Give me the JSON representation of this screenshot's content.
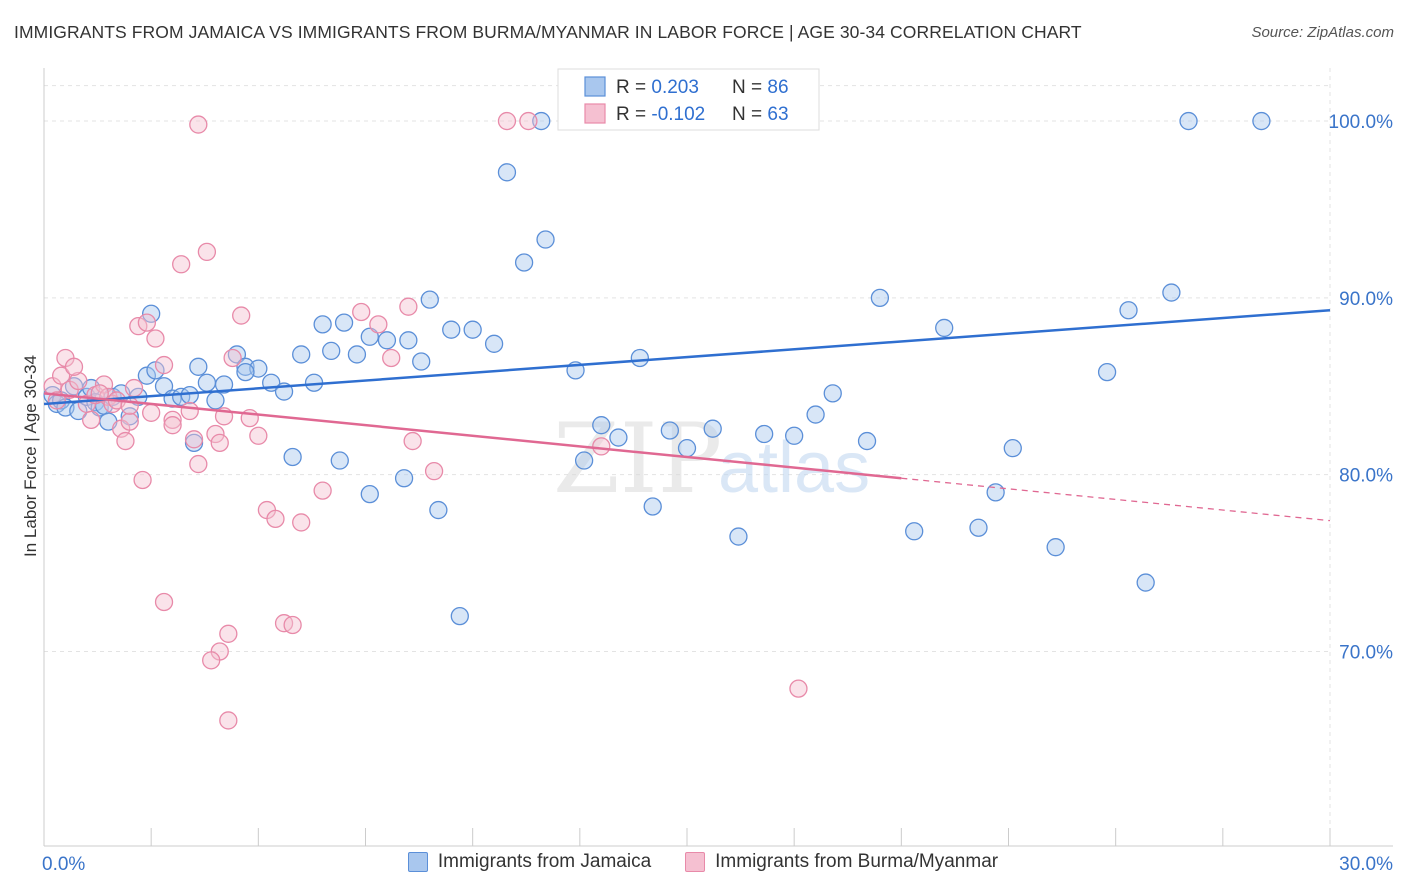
{
  "title": "IMMIGRANTS FROM JAMAICA VS IMMIGRANTS FROM BURMA/MYANMAR IN LABOR FORCE | AGE 30-34 CORRELATION CHART",
  "source": "Source: ZipAtlas.com",
  "watermark": {
    "zip": "ZIP",
    "atlas": "atlas"
  },
  "chart_data": {
    "type": "scatter",
    "ylabel": "In Labor Force | Age 30-34",
    "xlabel": "",
    "xlim": [
      0,
      30
    ],
    "ylim": [
      59,
      103
    ],
    "x_tick_labels": [
      {
        "value": 0,
        "label": "0.0%"
      },
      {
        "value": 30,
        "label": "30.0%"
      }
    ],
    "y_ticks": [
      {
        "value": 70,
        "label": "70.0%"
      },
      {
        "value": 80,
        "label": "80.0%"
      },
      {
        "value": 90,
        "label": "90.0%"
      },
      {
        "value": 100,
        "label": "100.0%"
      }
    ],
    "grid": true,
    "legend_position": "top-center",
    "stats": [
      {
        "r_label": "R = ",
        "r": "0.203",
        "n_label": "N = ",
        "n": "86"
      },
      {
        "r_label": "R = ",
        "r": "-0.102",
        "n_label": "N = ",
        "n": "63"
      }
    ],
    "series": [
      {
        "name": "Immigrants from Jamaica",
        "color": "#5b8fd8",
        "fill": "#a9c7ee",
        "trend_color": "#2f6fd0",
        "trend": {
          "x0": 0,
          "y0": 84.0,
          "x1": 30,
          "y1": 89.3,
          "dashed_from": null
        },
        "points": [
          [
            0.2,
            84.5
          ],
          [
            0.3,
            84.0
          ],
          [
            0.4,
            84.2
          ],
          [
            0.5,
            83.8
          ],
          [
            0.7,
            85.0
          ],
          [
            0.8,
            83.6
          ],
          [
            1.0,
            84.4
          ],
          [
            1.1,
            84.9
          ],
          [
            1.2,
            84.1
          ],
          [
            1.3,
            83.8
          ],
          [
            1.4,
            83.9
          ],
          [
            1.5,
            83.0
          ],
          [
            1.6,
            84.4
          ],
          [
            1.8,
            84.6
          ],
          [
            2.0,
            83.3
          ],
          [
            2.2,
            84.4
          ],
          [
            2.4,
            85.6
          ],
          [
            2.6,
            85.9
          ],
          [
            2.8,
            85.0
          ],
          [
            3.0,
            84.3
          ],
          [
            3.2,
            84.4
          ],
          [
            3.4,
            84.5
          ],
          [
            3.6,
            86.1
          ],
          [
            3.8,
            85.2
          ],
          [
            4.0,
            84.2
          ],
          [
            4.2,
            85.1
          ],
          [
            4.5,
            86.8
          ],
          [
            4.7,
            86.1
          ],
          [
            5.0,
            86.0
          ],
          [
            5.3,
            85.2
          ],
          [
            5.6,
            84.7
          ],
          [
            6.0,
            86.8
          ],
          [
            6.3,
            85.2
          ],
          [
            6.5,
            88.5
          ],
          [
            6.7,
            87.0
          ],
          [
            7.0,
            88.6
          ],
          [
            7.3,
            86.8
          ],
          [
            7.6,
            87.8
          ],
          [
            8.0,
            87.6
          ],
          [
            8.5,
            87.6
          ],
          [
            8.8,
            86.4
          ],
          [
            9.0,
            89.9
          ],
          [
            9.5,
            88.2
          ],
          [
            10.0,
            88.2
          ],
          [
            10.5,
            87.4
          ],
          [
            11.2,
            92.0
          ],
          [
            11.7,
            93.3
          ],
          [
            12.4,
            85.9
          ],
          [
            12.6,
            80.8
          ],
          [
            13.0,
            82.8
          ],
          [
            13.4,
            82.1
          ],
          [
            13.9,
            86.6
          ],
          [
            14.2,
            78.2
          ],
          [
            14.6,
            82.5
          ],
          [
            15.0,
            81.5
          ],
          [
            15.6,
            82.6
          ],
          [
            16.2,
            76.5
          ],
          [
            16.8,
            82.3
          ],
          [
            17.5,
            82.2
          ],
          [
            18.0,
            83.4
          ],
          [
            18.4,
            84.6
          ],
          [
            19.2,
            81.9
          ],
          [
            19.5,
            90.0
          ],
          [
            20.3,
            76.8
          ],
          [
            21.0,
            88.3
          ],
          [
            21.8,
            77.0
          ],
          [
            22.2,
            79.0
          ],
          [
            22.6,
            81.5
          ],
          [
            23.6,
            75.9
          ],
          [
            24.8,
            85.8
          ],
          [
            25.3,
            89.3
          ],
          [
            25.7,
            73.9
          ],
          [
            26.3,
            90.3
          ],
          [
            26.7,
            100.0
          ],
          [
            28.4,
            100.0
          ],
          [
            9.7,
            72.0
          ],
          [
            10.8,
            97.1
          ],
          [
            11.6,
            100.0
          ],
          [
            2.5,
            89.1
          ],
          [
            4.7,
            85.8
          ],
          [
            3.5,
            81.8
          ],
          [
            5.8,
            81.0
          ],
          [
            6.9,
            80.8
          ],
          [
            7.6,
            78.9
          ],
          [
            8.4,
            79.8
          ],
          [
            9.2,
            78.0
          ]
        ]
      },
      {
        "name": "Immigrants from Burma/Myanmar",
        "color": "#e88aa9",
        "fill": "#f5c0d1",
        "trend_color": "#e06892",
        "trend": {
          "x0": 0,
          "y0": 84.6,
          "x1": 30,
          "y1": 77.4,
          "dashed_from": 20.0
        },
        "points": [
          [
            0.2,
            85.0
          ],
          [
            0.3,
            84.2
          ],
          [
            0.4,
            85.6
          ],
          [
            0.5,
            86.6
          ],
          [
            0.6,
            84.8
          ],
          [
            0.8,
            85.3
          ],
          [
            1.0,
            84.0
          ],
          [
            1.1,
            83.1
          ],
          [
            1.2,
            84.5
          ],
          [
            1.4,
            85.1
          ],
          [
            1.5,
            84.4
          ],
          [
            1.6,
            84.0
          ],
          [
            1.8,
            82.6
          ],
          [
            1.9,
            81.9
          ],
          [
            2.0,
            83.0
          ],
          [
            2.1,
            84.9
          ],
          [
            2.2,
            88.4
          ],
          [
            2.4,
            88.6
          ],
          [
            2.6,
            87.7
          ],
          [
            2.8,
            86.2
          ],
          [
            3.0,
            83.1
          ],
          [
            3.2,
            91.9
          ],
          [
            3.4,
            83.6
          ],
          [
            3.6,
            80.6
          ],
          [
            3.8,
            92.6
          ],
          [
            4.0,
            82.3
          ],
          [
            4.2,
            83.3
          ],
          [
            4.4,
            86.6
          ],
          [
            4.6,
            89.0
          ],
          [
            4.8,
            83.2
          ],
          [
            5.0,
            82.2
          ],
          [
            5.2,
            78.0
          ],
          [
            5.4,
            77.5
          ],
          [
            5.6,
            71.6
          ],
          [
            5.8,
            71.5
          ],
          [
            6.0,
            77.3
          ],
          [
            2.3,
            79.7
          ],
          [
            2.8,
            72.8
          ],
          [
            4.3,
            71.0
          ],
          [
            4.1,
            70.0
          ],
          [
            3.9,
            69.5
          ],
          [
            4.3,
            66.1
          ],
          [
            6.5,
            79.1
          ],
          [
            7.4,
            89.2
          ],
          [
            7.8,
            88.5
          ],
          [
            8.1,
            86.6
          ],
          [
            8.5,
            89.5
          ],
          [
            8.6,
            81.9
          ],
          [
            9.1,
            80.2
          ],
          [
            10.8,
            100.0
          ],
          [
            11.3,
            100.0
          ],
          [
            12.5,
            100.0
          ],
          [
            13.0,
            81.6
          ],
          [
            17.6,
            67.9
          ],
          [
            3.6,
            99.8
          ],
          [
            0.7,
            86.1
          ],
          [
            1.3,
            84.6
          ],
          [
            1.7,
            84.2
          ],
          [
            2.0,
            83.9
          ],
          [
            2.5,
            83.5
          ],
          [
            3.0,
            82.8
          ],
          [
            3.5,
            82.0
          ],
          [
            4.1,
            81.8
          ]
        ]
      }
    ]
  }
}
